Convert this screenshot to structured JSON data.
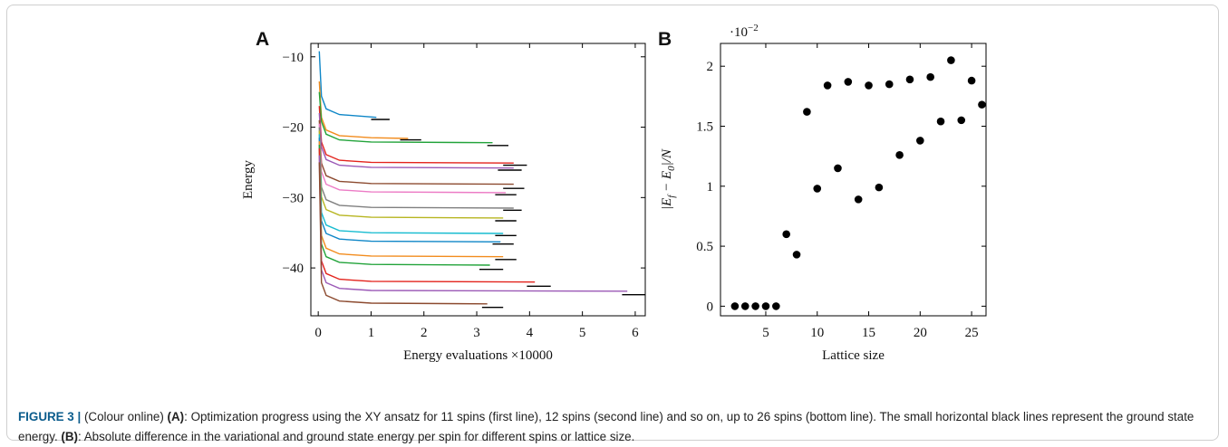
{
  "chart_data": [
    {
      "type": "line",
      "panel_label": "A",
      "xlabel": "Energy evaluations ×10000",
      "ylabel": "Energy",
      "xlim": [
        -0.14,
        6.19
      ],
      "ylim": [
        -46.8,
        -8.1
      ],
      "xticks": [
        0,
        1,
        2,
        3,
        4,
        5,
        6
      ],
      "yticks": [
        {
          "value": -10,
          "label": "−10"
        },
        {
          "value": -20,
          "label": "−20"
        },
        {
          "value": -30,
          "label": "−30"
        },
        {
          "value": -40,
          "label": "−40"
        }
      ],
      "series": [
        {
          "color": "#0e86c7",
          "x": [
            0.02,
            0.06,
            0.15,
            0.4,
            1.1
          ],
          "values": [
            -9.2,
            -15.6,
            -17.4,
            -18.2,
            -18.6
          ]
        },
        {
          "color": "#f28c1e",
          "x": [
            0.02,
            0.06,
            0.15,
            0.4,
            1,
            1.7
          ],
          "values": [
            -13.5,
            -18.6,
            -20.4,
            -21.2,
            -21.5,
            -21.6
          ]
        },
        {
          "color": "#22a33a",
          "x": [
            0.02,
            0.06,
            0.15,
            0.4,
            1,
            3.3
          ],
          "values": [
            -15,
            -19.2,
            -21,
            -21.8,
            -22.1,
            -22.2
          ]
        },
        {
          "color": "#e3231c",
          "x": [
            0.02,
            0.06,
            0.15,
            0.4,
            1,
            3.7
          ],
          "values": [
            -17,
            -22.1,
            -23.9,
            -24.7,
            -25,
            -25.1
          ]
        },
        {
          "color": "#9b59b6",
          "x": [
            0.02,
            0.06,
            0.15,
            0.4,
            1,
            3.7
          ],
          "values": [
            -18,
            -22.8,
            -24.6,
            -25.4,
            -25.7,
            -25.8
          ]
        },
        {
          "color": "#8c4a2f",
          "x": [
            0.02,
            0.06,
            0.15,
            0.4,
            1,
            3.7
          ],
          "values": [
            -19,
            -25.1,
            -26.9,
            -27.7,
            -28,
            -28.1
          ]
        },
        {
          "color": "#ec7bc5",
          "x": [
            0.02,
            0.06,
            0.15,
            0.4,
            1,
            3.55
          ],
          "values": [
            -19.5,
            -26.3,
            -28.1,
            -28.9,
            -29.2,
            -29.3
          ]
        },
        {
          "color": "#7f7f7f",
          "x": [
            0.02,
            0.06,
            0.15,
            0.4,
            1,
            3.7
          ],
          "values": [
            -20,
            -28.5,
            -30.3,
            -31.1,
            -31.4,
            -31.5
          ]
        },
        {
          "color": "#b7b520",
          "x": [
            0.02,
            0.06,
            0.15,
            0.4,
            1,
            3.5
          ],
          "values": [
            -20.5,
            -29.9,
            -31.7,
            -32.5,
            -32.8,
            -32.9
          ]
        },
        {
          "color": "#17bcd0",
          "x": [
            0.02,
            0.06,
            0.15,
            0.4,
            1,
            3.5
          ],
          "values": [
            -21,
            -32.1,
            -33.9,
            -34.7,
            -35,
            -35.1
          ]
        },
        {
          "color": "#0e86c7",
          "x": [
            0.02,
            0.06,
            0.15,
            0.4,
            1,
            3.45
          ],
          "values": [
            -21.5,
            -33.3,
            -35.1,
            -35.9,
            -36.2,
            -36.3
          ]
        },
        {
          "color": "#f28c1e",
          "x": [
            0.02,
            0.06,
            0.15,
            0.4,
            1,
            3.5
          ],
          "values": [
            -22,
            -35.4,
            -37.2,
            -38,
            -38.3,
            -38.4
          ]
        },
        {
          "color": "#22a33a",
          "x": [
            0.02,
            0.06,
            0.15,
            0.4,
            1,
            3.25
          ],
          "values": [
            -22.5,
            -36.6,
            -38.4,
            -39.2,
            -39.5,
            -39.6
          ]
        },
        {
          "color": "#e3231c",
          "x": [
            0.02,
            0.06,
            0.15,
            0.4,
            1,
            4.1
          ],
          "values": [
            -23,
            -39,
            -40.8,
            -41.6,
            -41.9,
            -42
          ]
        },
        {
          "color": "#9b59b6",
          "x": [
            0.02,
            0.06,
            0.15,
            0.4,
            1,
            5.85
          ],
          "values": [
            -24,
            -40.3,
            -42.1,
            -42.9,
            -43.2,
            -43.3
          ]
        },
        {
          "color": "#8c4a2f",
          "x": [
            0.02,
            0.06,
            0.15,
            0.4,
            1,
            3.2
          ],
          "values": [
            -25,
            -42.1,
            -43.9,
            -44.7,
            -45,
            -45.1
          ]
        },
        {
          "color": "#000000",
          "x": [
            1.0,
            1.35
          ],
          "values": [
            -18.9,
            -18.9
          ]
        },
        {
          "color": "#000000",
          "x": [
            1.55,
            1.95
          ],
          "values": [
            -21.8,
            -21.8
          ]
        },
        {
          "color": "#000000",
          "x": [
            3.2,
            3.6
          ],
          "values": [
            -22.6,
            -22.6
          ]
        },
        {
          "color": "#000000",
          "x": [
            3.5,
            3.95
          ],
          "values": [
            -25.4,
            -25.4
          ]
        },
        {
          "color": "#000000",
          "x": [
            3.4,
            3.85
          ],
          "values": [
            -26.1,
            -26.1
          ]
        },
        {
          "color": "#000000",
          "x": [
            3.5,
            3.9
          ],
          "values": [
            -28.7,
            -28.7
          ]
        },
        {
          "color": "#000000",
          "x": [
            3.35,
            3.75
          ],
          "values": [
            -29.6,
            -29.6
          ]
        },
        {
          "color": "#000000",
          "x": [
            3.5,
            3.85
          ],
          "values": [
            -31.8,
            -31.8
          ]
        },
        {
          "color": "#000000",
          "x": [
            3.35,
            3.75
          ],
          "values": [
            -33.3,
            -33.3
          ]
        },
        {
          "color": "#000000",
          "x": [
            3.35,
            3.75
          ],
          "values": [
            -35.4,
            -35.4
          ]
        },
        {
          "color": "#000000",
          "x": [
            3.3,
            3.7
          ],
          "values": [
            -36.6,
            -36.6
          ]
        },
        {
          "color": "#000000",
          "x": [
            3.35,
            3.75
          ],
          "values": [
            -38.8,
            -38.8
          ]
        },
        {
          "color": "#000000",
          "x": [
            3.05,
            3.5
          ],
          "values": [
            -40.2,
            -40.2
          ]
        },
        {
          "color": "#000000",
          "x": [
            3.95,
            4.4
          ],
          "values": [
            -42.6,
            -42.6
          ]
        },
        {
          "color": "#000000",
          "x": [
            5.75,
            6.19
          ],
          "values": [
            -43.8,
            -43.8
          ]
        },
        {
          "color": "#000000",
          "x": [
            3.1,
            3.5
          ],
          "values": [
            -45.6,
            -45.6
          ]
        }
      ]
    },
    {
      "type": "scatter",
      "panel_label": "B",
      "xlabel": "Lattice size",
      "ylabel": [
        "|E",
        "f",
        " − E",
        "0",
        "|/N"
      ],
      "y_multiplier": [
        "·10",
        "−2"
      ],
      "xlim": [
        0.6,
        26.4
      ],
      "ylim": [
        -0.08,
        2.19
      ],
      "xticks": [
        5,
        10,
        15,
        20,
        25
      ],
      "yticks": [
        0,
        0.5,
        1,
        1.5,
        2
      ],
      "color": "#000000",
      "x": [
        2,
        3,
        4,
        5,
        6,
        7,
        8,
        9,
        10,
        11,
        12,
        13,
        14,
        15,
        16,
        17,
        18,
        19,
        20,
        21,
        22,
        23,
        24,
        25,
        26
      ],
      "values": [
        0,
        0,
        0,
        0,
        0,
        0.6,
        0.43,
        1.62,
        0.98,
        1.84,
        1.15,
        1.87,
        0.89,
        1.84,
        0.99,
        1.85,
        1.26,
        1.89,
        1.38,
        1.91,
        1.54,
        2.05,
        1.55,
        1.88,
        1.68
      ]
    }
  ],
  "caption": [
    "FIGURE 3 |",
    "(Colour online)",
    "(A)",
    ": Optimization progress using the XY ansatz for 11 spins (first line), 12 spins (second line) and so on, up to 26 spins (bottom line). The small horizontal black lines represent the ground state energy.",
    "(B)",
    ": Absolute difference in the variational and ground state energy per spin for different spins or lattice size."
  ]
}
